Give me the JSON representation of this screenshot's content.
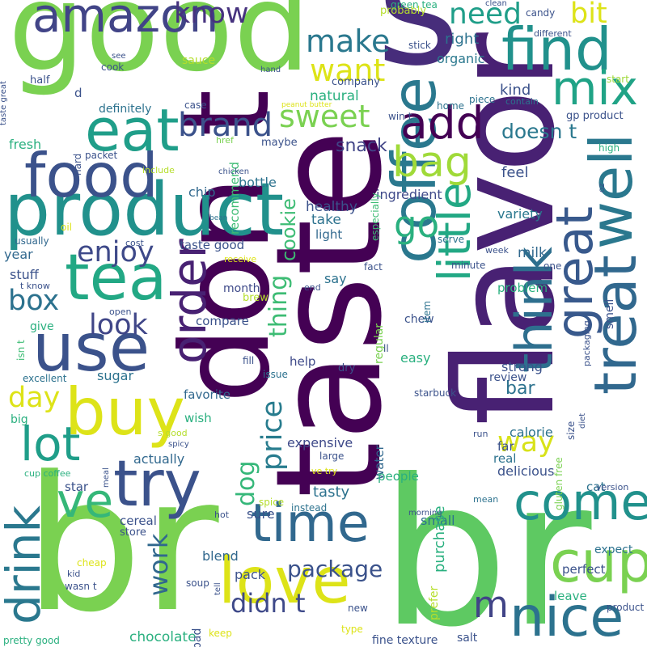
{
  "words": [
    {
      "text": "br",
      "color": "#7ad151"
    },
    {
      "text": "br",
      "color": "#5ec962"
    },
    {
      "text": "taste",
      "color": "#440154"
    },
    {
      "text": "flavor",
      "color": "#482173"
    },
    {
      "text": "s",
      "color": "#472d7b"
    },
    {
      "text": "good",
      "color": "#7ad151"
    },
    {
      "text": "don t",
      "color": "#440154"
    },
    {
      "text": "product",
      "color": "#21918c"
    },
    {
      "text": "coffee",
      "color": "#2a788e"
    },
    {
      "text": "amazon",
      "color": "#414487"
    },
    {
      "text": "find",
      "color": "#21918c"
    },
    {
      "text": "tea",
      "color": "#22a884"
    },
    {
      "text": "use",
      "color": "#3b528b"
    },
    {
      "text": "food",
      "color": "#3b528b"
    },
    {
      "text": "eat",
      "color": "#1f9e89"
    },
    {
      "text": "try",
      "color": "#3b528b"
    },
    {
      "text": "buy",
      "color": "#dde318"
    },
    {
      "text": "time",
      "color": "#31688e"
    },
    {
      "text": "love",
      "color": "#dde318"
    },
    {
      "text": "come",
      "color": "#21918c"
    },
    {
      "text": "nice",
      "color": "#2c728e"
    },
    {
      "text": "cup",
      "color": "#7ad151"
    },
    {
      "text": "great",
      "color": "#38598c"
    },
    {
      "text": "well",
      "color": "#2a788e"
    },
    {
      "text": "think",
      "color": "#2e6f8e"
    },
    {
      "text": "treat",
      "color": "#31688e"
    },
    {
      "text": "little",
      "color": "#22a884"
    },
    {
      "text": "lot",
      "color": "#1f9e89"
    },
    {
      "text": "ve",
      "color": "#35b779"
    },
    {
      "text": "drink",
      "color": "#2a788e"
    },
    {
      "text": "order",
      "color": "#482173"
    },
    {
      "text": "mix",
      "color": "#20a386"
    },
    {
      "text": "add",
      "color": "#440154"
    },
    {
      "text": "bag",
      "color": "#a0da39"
    },
    {
      "text": "go",
      "color": "#2ab07f"
    },
    {
      "text": "m",
      "color": "#414487"
    },
    {
      "text": "brand",
      "color": "#3b528b"
    },
    {
      "text": "make",
      "color": "#2a788e"
    },
    {
      "text": "want",
      "color": "#dde318"
    },
    {
      "text": "sweet",
      "color": "#7ad151"
    },
    {
      "text": "need",
      "color": "#1f9e89"
    },
    {
      "text": "bit",
      "color": "#dde318"
    },
    {
      "text": "know",
      "color": "#46327e"
    },
    {
      "text": "enjoy",
      "color": "#3e4989"
    },
    {
      "text": "box",
      "color": "#2c728e"
    },
    {
      "text": "look",
      "color": "#404688"
    },
    {
      "text": "day",
      "color": "#dde318"
    },
    {
      "text": "way",
      "color": "#d8e219"
    },
    {
      "text": "price",
      "color": "#287c8e"
    },
    {
      "text": "thing",
      "color": "#3dbc74"
    },
    {
      "text": "work",
      "color": "#31688e"
    },
    {
      "text": "dog",
      "color": "#35b779"
    },
    {
      "text": "didn t",
      "color": "#3e4989"
    },
    {
      "text": "package",
      "color": "#3b528b"
    },
    {
      "text": "cookie",
      "color": "#3dbc74"
    },
    {
      "text": "snack",
      "color": "#414487"
    },
    {
      "text": "right",
      "color": "#2c728e"
    },
    {
      "text": "organic",
      "color": "#2a788e"
    },
    {
      "text": "doesn t",
      "color": "#2a788e"
    },
    {
      "text": "kind",
      "color": "#3b528b"
    },
    {
      "text": "feel",
      "color": "#3b528b"
    },
    {
      "text": "ingredient",
      "color": "#3e4989"
    },
    {
      "text": "variety",
      "color": "#2a788e"
    },
    {
      "text": "healthy",
      "color": "#3b528b"
    },
    {
      "text": "take",
      "color": "#2c728e"
    },
    {
      "text": "light",
      "color": "#31688e"
    },
    {
      "text": "taste good",
      "color": "#3b528b"
    },
    {
      "text": "milk",
      "color": "#31688e"
    },
    {
      "text": "chip",
      "color": "#31688e"
    },
    {
      "text": "bottle",
      "color": "#2c728e"
    },
    {
      "text": "natural",
      "color": "#2ab07f"
    },
    {
      "text": "definitely",
      "color": "#2c728e"
    },
    {
      "text": "fresh",
      "color": "#2ab07f"
    },
    {
      "text": "recommend",
      "color": "#3dbc74"
    },
    {
      "text": "stuff",
      "color": "#3b528b"
    },
    {
      "text": "year",
      "color": "#31688e"
    },
    {
      "text": "month",
      "color": "#3e4989"
    },
    {
      "text": "say",
      "color": "#2c728e"
    },
    {
      "text": "compare",
      "color": "#3b528b"
    },
    {
      "text": "give",
      "color": "#2ab07f"
    },
    {
      "text": "sugar",
      "color": "#2c728e"
    },
    {
      "text": "favorite",
      "color": "#31688e"
    },
    {
      "text": "help",
      "color": "#3e4989"
    },
    {
      "text": "bar",
      "color": "#2c728e"
    },
    {
      "text": "easy",
      "color": "#2ab07f"
    },
    {
      "text": "strong",
      "color": "#3b528b"
    },
    {
      "text": "review",
      "color": "#3b528b"
    },
    {
      "text": "problem",
      "color": "#2ab07f"
    },
    {
      "text": "calorie",
      "color": "#2c728e"
    },
    {
      "text": "expensive",
      "color": "#3e4989"
    },
    {
      "text": "delicious",
      "color": "#3b528b"
    },
    {
      "text": "actually",
      "color": "#31688e"
    },
    {
      "text": "tasty",
      "color": "#2c728e"
    },
    {
      "text": "cereal",
      "color": "#3b528b"
    },
    {
      "text": "store",
      "color": "#3b528b"
    },
    {
      "text": "sure",
      "color": "#3b528b"
    },
    {
      "text": "small",
      "color": "#2c728e"
    },
    {
      "text": "blend",
      "color": "#31688e"
    },
    {
      "text": "pack",
      "color": "#3b528b"
    },
    {
      "text": "chocolate",
      "color": "#2ab07f"
    },
    {
      "text": "fine texture",
      "color": "#3b528b"
    },
    {
      "text": "salt",
      "color": "#3b528b"
    },
    {
      "text": "wish",
      "color": "#2ab07f"
    },
    {
      "text": "star",
      "color": "#3b528b"
    },
    {
      "text": "water",
      "color": "#31688e"
    },
    {
      "text": "purchase",
      "color": "#2ab07f"
    },
    {
      "text": "far",
      "color": "#3b528b"
    },
    {
      "text": "real",
      "color": "#2c728e"
    },
    {
      "text": "cat",
      "color": "#2c728e"
    },
    {
      "text": "people",
      "color": "#2ab07f"
    },
    {
      "text": "perfect",
      "color": "#3b528b"
    },
    {
      "text": "expect",
      "color": "#2c728e"
    },
    {
      "text": "leave",
      "color": "#2ab07f"
    },
    {
      "text": "smell",
      "color": "#3b528b"
    },
    {
      "text": "regular",
      "color": "#7ad151"
    },
    {
      "text": "chew",
      "color": "#3b528b"
    },
    {
      "text": "starbuck",
      "color": "#3b528b"
    },
    {
      "text": "usually",
      "color": "#31688e"
    },
    {
      "text": "big",
      "color": "#2ab07f"
    },
    {
      "text": "excellent",
      "color": "#2c728e"
    },
    {
      "text": "green tea",
      "color": "#2ab07f"
    },
    {
      "text": "probably",
      "color": "#b5de2b"
    },
    {
      "text": "candy",
      "color": "#3b528b"
    },
    {
      "text": "clean",
      "color": "#3b528b"
    },
    {
      "text": "different",
      "color": "#3b528b"
    },
    {
      "text": "stick",
      "color": "#3b528b"
    },
    {
      "text": "company",
      "color": "#3b528b"
    },
    {
      "text": "piece",
      "color": "#2c728e"
    },
    {
      "text": "start",
      "color": "#9fda3a"
    },
    {
      "text": "home",
      "color": "#2c728e"
    },
    {
      "text": "contain",
      "color": "#2c728e"
    },
    {
      "text": "win t",
      "color": "#3b528b"
    },
    {
      "text": "gp product",
      "color": "#3b528b"
    },
    {
      "text": "high",
      "color": "#2ab07f"
    },
    {
      "text": "especially",
      "color": "#3dbc74"
    },
    {
      "text": "oz",
      "color": "#3b528b"
    },
    {
      "text": "see",
      "color": "#3b528b"
    },
    {
      "text": "cook",
      "color": "#3b528b"
    },
    {
      "text": "sauce",
      "color": "#b5de2b"
    },
    {
      "text": "hand",
      "color": "#3b528b"
    },
    {
      "text": "half",
      "color": "#3b528b"
    },
    {
      "text": "d",
      "color": "#3b528b"
    },
    {
      "text": "case",
      "color": "#3b528b"
    },
    {
      "text": "peanut butter",
      "color": "#dde318"
    },
    {
      "text": "maybe",
      "color": "#3b528b"
    },
    {
      "text": "hard",
      "color": "#3b528b"
    },
    {
      "text": "packet",
      "color": "#3b528b"
    },
    {
      "text": "href",
      "color": "#7ad151"
    },
    {
      "text": "include",
      "color": "#b5de2b"
    },
    {
      "text": "chicken",
      "color": "#3b528b"
    },
    {
      "text": "bean",
      "color": "#2c728e"
    },
    {
      "text": "oil",
      "color": "#dde318"
    },
    {
      "text": "cost",
      "color": "#3b528b"
    },
    {
      "text": "receive",
      "color": "#dde318"
    },
    {
      "text": "fact",
      "color": "#3b528b"
    },
    {
      "text": "serve",
      "color": "#2c728e"
    },
    {
      "text": "minute",
      "color": "#3b528b"
    },
    {
      "text": "week",
      "color": "#3b528b"
    },
    {
      "text": "one",
      "color": "#3b528b"
    },
    {
      "text": "packaging",
      "color": "#3b528b"
    },
    {
      "text": "t know",
      "color": "#3b528b"
    },
    {
      "text": "end",
      "color": "#3b528b"
    },
    {
      "text": "brew",
      "color": "#b5de2b"
    },
    {
      "text": "open",
      "color": "#3b528b"
    },
    {
      "text": "item",
      "color": "#2c728e"
    },
    {
      "text": "isn t",
      "color": "#3dbc74"
    },
    {
      "text": "fill",
      "color": "#3b528b"
    },
    {
      "text": "issue",
      "color": "#2c728e"
    },
    {
      "text": "dry",
      "color": "#3b528b"
    },
    {
      "text": "ll",
      "color": "#3b528b"
    },
    {
      "text": "size",
      "color": "#3b528b"
    },
    {
      "text": "diet",
      "color": "#3b528b"
    },
    {
      "text": "gluten free",
      "color": "#7ad151"
    },
    {
      "text": "s good",
      "color": "#b5de2b"
    },
    {
      "text": "spicy",
      "color": "#3b528b"
    },
    {
      "text": "meal",
      "color": "#3b528b"
    },
    {
      "text": "large",
      "color": "#3b528b"
    },
    {
      "text": "ve try",
      "color": "#dde318"
    },
    {
      "text": "run",
      "color": "#3b528b"
    },
    {
      "text": "cup coffee",
      "color": "#2ab07f"
    },
    {
      "text": "spice",
      "color": "#b5de2b"
    },
    {
      "text": "instead",
      "color": "#2c728e"
    },
    {
      "text": "hot",
      "color": "#3b528b"
    },
    {
      "text": "mean",
      "color": "#2c728e"
    },
    {
      "text": "version",
      "color": "#3b528b"
    },
    {
      "text": "morning",
      "color": "#3b528b"
    },
    {
      "text": "prefer",
      "color": "#b5de2b"
    },
    {
      "text": "cheap",
      "color": "#dde318"
    },
    {
      "text": "kid",
      "color": "#3b528b"
    },
    {
      "text": "wasn t",
      "color": "#3b528b"
    },
    {
      "text": "soup",
      "color": "#3b528b"
    },
    {
      "text": "tell",
      "color": "#3b528b"
    },
    {
      "text": "bad",
      "color": "#3b528b"
    },
    {
      "text": "keep",
      "color": "#dde318"
    },
    {
      "text": "new",
      "color": "#3b528b"
    },
    {
      "text": "type",
      "color": "#dde318"
    },
    {
      "text": "pretty good",
      "color": "#2ab07f"
    },
    {
      "text": "product b",
      "color": "#3b528b"
    },
    {
      "text": "taste great",
      "color": "#3b528b"
    }
  ]
}
